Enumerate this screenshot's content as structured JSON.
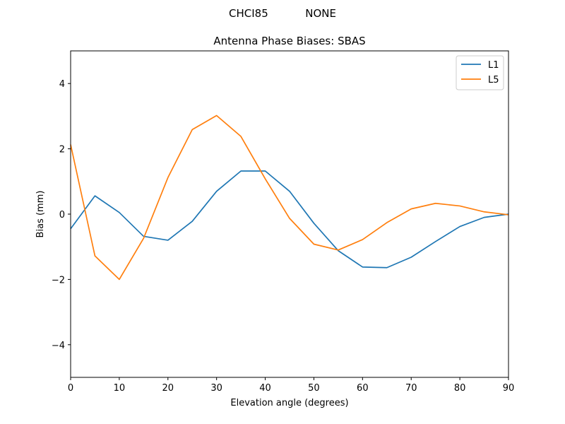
{
  "suptitle": "CHCI85           NONE",
  "chart_data": {
    "type": "line",
    "title": "Antenna Phase Biases: SBAS",
    "xlabel": "Elevation angle (degrees)",
    "ylabel": "Bias (mm)",
    "xlim": [
      0,
      90
    ],
    "ylim": [
      -5,
      5
    ],
    "xticks": [
      0,
      10,
      20,
      30,
      40,
      50,
      60,
      70,
      80,
      90
    ],
    "yticks": [
      -4,
      -2,
      0,
      2,
      4
    ],
    "x": [
      0,
      5,
      10,
      15,
      20,
      25,
      30,
      35,
      40,
      45,
      50,
      55,
      60,
      65,
      70,
      75,
      80,
      85,
      90
    ],
    "series": [
      {
        "name": "L1",
        "color": "#1f77b4",
        "values": [
          -0.45,
          0.56,
          0.05,
          -0.68,
          -0.8,
          -0.22,
          0.7,
          1.32,
          1.32,
          0.7,
          -0.28,
          -1.12,
          -1.62,
          -1.64,
          -1.32,
          -0.84,
          -0.38,
          -0.1,
          0.0
        ]
      },
      {
        "name": "L5",
        "color": "#ff7f0e",
        "values": [
          2.13,
          -1.28,
          -2.0,
          -0.74,
          1.12,
          2.59,
          3.02,
          2.38,
          1.08,
          -0.13,
          -0.92,
          -1.1,
          -0.78,
          -0.26,
          0.16,
          0.33,
          0.25,
          0.07,
          -0.02
        ]
      }
    ],
    "grid": false,
    "legend": "top-right"
  }
}
